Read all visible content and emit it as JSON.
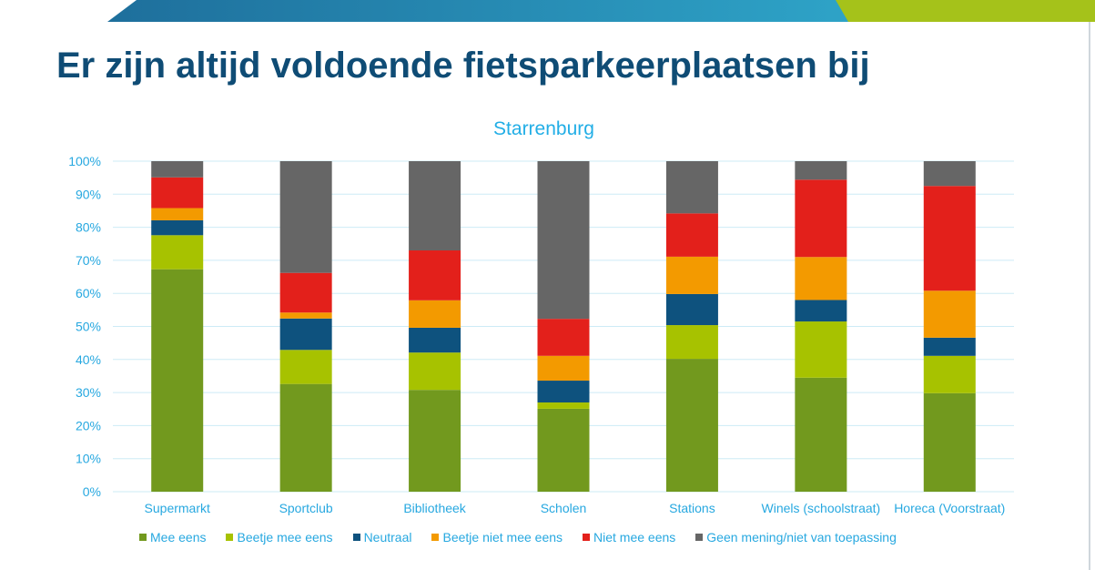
{
  "slide": {
    "title": "Er zijn altijd voldoende fietsparkeerplaatsen bij",
    "top_bar_colors": {
      "left": "#1e6f9c",
      "right": "#2ea3c7",
      "accent": "#a5c21a"
    }
  },
  "chart_data": {
    "type": "bar",
    "stacked": true,
    "title": "Starrenburg",
    "xlabel": "",
    "ylabel": "",
    "ylim": [
      0,
      100
    ],
    "y_ticks": [
      "0%",
      "10%",
      "20%",
      "30%",
      "40%",
      "50%",
      "60%",
      "70%",
      "80%",
      "90%",
      "100%"
    ],
    "grid": true,
    "legend_position": "bottom",
    "categories": [
      "Supermarkt",
      "Sportclub",
      "Bibliotheek",
      "Scholen",
      "Stations",
      "Winels (schoolstraat)",
      "Horeca (Voorstraat)"
    ],
    "series": [
      {
        "name": "Mee eens",
        "color": "#72991e",
        "values": [
          67.3,
          32.6,
          30.8,
          25.1,
          40.2,
          34.5,
          29.8
        ]
      },
      {
        "name": "Beetje mee eens",
        "color": "#a7c200",
        "values": [
          10.3,
          10.3,
          11.3,
          1.9,
          10.2,
          17.0,
          11.3
        ]
      },
      {
        "name": "Neutraal",
        "color": "#0e527e",
        "values": [
          4.5,
          9.5,
          7.5,
          6.6,
          9.4,
          6.5,
          5.5
        ]
      },
      {
        "name": "Beetje niet mee eens",
        "color": "#f39a00",
        "values": [
          3.7,
          1.8,
          8.3,
          7.5,
          11.3,
          13.0,
          14.2
        ]
      },
      {
        "name": "Niet mee eens",
        "color": "#e3201b",
        "values": [
          9.3,
          12.0,
          15.1,
          11.2,
          13.1,
          23.4,
          31.7
        ]
      },
      {
        "name": "Geen mening/niet van toepassing",
        "color": "#666666",
        "values": [
          4.9,
          33.8,
          27.0,
          47.7,
          15.8,
          5.6,
          7.5
        ]
      }
    ]
  }
}
